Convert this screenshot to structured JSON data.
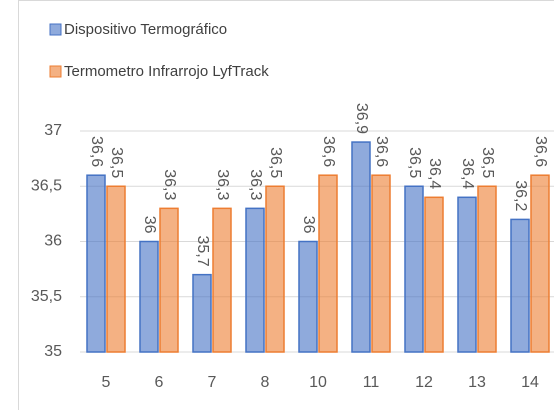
{
  "chart_data": {
    "type": "bar",
    "categories": [
      "5",
      "6",
      "7",
      "8",
      "10",
      "11",
      "12",
      "13",
      "14"
    ],
    "series": [
      {
        "name": "Dispositivo Termográfico",
        "color": "#4472c4",
        "values": [
          36.6,
          36,
          35.7,
          36.3,
          36,
          36.9,
          36.5,
          36.4,
          36.2
        ],
        "value_labels": [
          "36,6",
          "36",
          "35,7",
          "36,3",
          "36",
          "36,9",
          "36,5",
          "36,4",
          "36,2"
        ]
      },
      {
        "name": "Termometro Infrarrojo LyfTrack",
        "color": "#ed7d31",
        "values": [
          36.5,
          36.3,
          36.3,
          36.5,
          36.6,
          36.6,
          36.4,
          36.5,
          36.6
        ],
        "value_labels": [
          "36,5",
          "36,3",
          "36,3",
          "36,5",
          "36,6",
          "36,6",
          "36,4",
          "36,5",
          "36,6"
        ]
      }
    ],
    "ylim": [
      35,
      37
    ],
    "yticks": [
      35,
      {
        "value": 35.5,
        "label": "35,5"
      },
      36,
      {
        "value": 36.5,
        "label": "36,5"
      },
      37
    ],
    "grid": true
  }
}
